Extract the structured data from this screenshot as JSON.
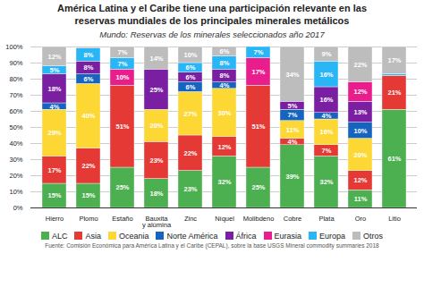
{
  "chart_data": {
    "type": "bar",
    "title": "América Latina y el Caribe tiene una participación relevante en las\nreservas mundiales de los principales minerales metálicos",
    "subtitle": "Mundo: Reservas de los minerales seleccionados año 2017",
    "source": "Fuente: Comisión Económica para América Latina y el Caribe (CEPAL), sobre la base USGS Mineral commodity summaries 2018",
    "categories": [
      "Hierro",
      "Plomo",
      "Estaño",
      "Bauxita\ny alúmina",
      "Zinc",
      "Níquel",
      "Molibdeno",
      "Cobre",
      "Plata",
      "Oro",
      "Litio"
    ],
    "series": [
      {
        "name": "ALC",
        "color": "#4caf50",
        "values": [
          15,
          15,
          25,
          18,
          23,
          32,
          25,
          39,
          32,
          11,
          61
        ],
        "value_labels": [
          "15%",
          "15%",
          "25%",
          "18%",
          "23%",
          "32%",
          "25%",
          "39%",
          "32%",
          "11%",
          "61%"
        ]
      },
      {
        "name": "Asia",
        "color": "#e53935",
        "values": [
          17,
          22,
          51,
          23,
          22,
          12,
          51,
          4,
          7,
          12,
          21
        ],
        "value_labels": [
          "17%",
          "22%",
          "51%",
          "23%",
          "22%",
          "12%",
          "51%",
          "4%",
          "7%",
          "12%",
          "21%"
        ]
      },
      {
        "name": "Oceania",
        "color": "#fdd835",
        "values": [
          29,
          40,
          0,
          20,
          27,
          30,
          0,
          11,
          16,
          20,
          0
        ],
        "value_labels": [
          "29%",
          "40%",
          null,
          "20%",
          "27%",
          "30%",
          null,
          "11%",
          "16%",
          "20%",
          null
        ]
      },
      {
        "name": "Norte América",
        "color": "#1565c0",
        "values": [
          4,
          6,
          0,
          0,
          6,
          4,
          0,
          7,
          4,
          10,
          0
        ],
        "value_labels": [
          "4%",
          "6%",
          null,
          null,
          "6%",
          "4%",
          null,
          "7%",
          "4%",
          "10%",
          null
        ]
      },
      {
        "name": "África",
        "color": "#7b1fa2",
        "values": [
          18,
          8,
          0,
          25,
          6,
          8,
          0,
          5,
          16,
          13,
          0
        ],
        "value_labels": [
          "18%",
          "8%",
          null,
          "25%",
          "6%",
          "8%",
          null,
          "5%",
          "16%",
          "13%",
          null
        ]
      },
      {
        "name": "Eurasia",
        "color": "#e91e8c",
        "values": [
          0,
          0,
          10,
          0,
          0,
          0,
          17,
          0,
          0,
          12,
          0
        ],
        "value_labels": [
          null,
          null,
          "10%",
          null,
          null,
          null,
          "17%",
          null,
          null,
          "12%",
          null
        ]
      },
      {
        "name": "Europa",
        "color": "#29b6f6",
        "values": [
          5,
          8,
          7,
          0,
          6,
          8,
          7,
          0,
          16,
          0,
          1
        ],
        "value_labels": [
          "5%",
          "8%",
          "7%",
          null,
          "6%",
          "8%",
          "7%",
          null,
          "16%",
          null,
          null
        ]
      },
      {
        "name": "Otros",
        "color": "#bdbdbd",
        "values": [
          12,
          1,
          7,
          14,
          10,
          6,
          0,
          34,
          9,
          22,
          17
        ],
        "value_labels": [
          "12%",
          null,
          "7%",
          "14%",
          "10%",
          "6%",
          null,
          "34%",
          "9%",
          "22%",
          "17%"
        ]
      }
    ],
    "stacked": true,
    "data_labels": true,
    "ylim": [
      0,
      100
    ],
    "yticks": [
      {
        "value": 0,
        "label": "0%"
      },
      {
        "value": 10,
        "label": "10%"
      },
      {
        "value": 20,
        "label": "20%"
      },
      {
        "value": 30,
        "label": "30%"
      },
      {
        "value": 40,
        "label": "40%"
      },
      {
        "value": 50,
        "label": "50%"
      },
      {
        "value": 60,
        "label": "60%"
      },
      {
        "value": 70,
        "label": "70%"
      },
      {
        "value": 80,
        "label": "80%"
      },
      {
        "value": 90,
        "label": "90%"
      },
      {
        "value": 100,
        "label": "100%"
      }
    ],
    "grid": true,
    "legend": "bottom"
  }
}
